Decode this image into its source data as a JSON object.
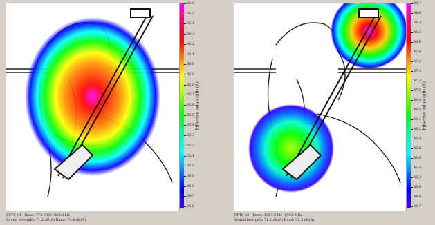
{
  "panels": [
    {
      "colorbar_label": "Effective value (dB) (A)",
      "ticks": [
        "66.6",
        "66.5",
        "66.4",
        "66.3",
        "66.2",
        "66.1",
        "66.0",
        "65.9",
        "65.8",
        "65.7",
        "65.6",
        "65.5",
        "65.4",
        "65.3",
        "65.2",
        "65.1",
        "65.0",
        "64.9",
        "64.8",
        "64.7",
        "64.6"
      ],
      "caption_line1": "FFTr_G1_  Band: 772.8 Hz- 888.6 Hz",
      "caption_line2": "Sound level(all): 71.2 dB(A)    Band: 70.4 dB(A)",
      "colors": {
        "top": "#ff00ff",
        "high": "#ff0000",
        "mid": "#ffff00",
        "low": "#00ff00",
        "lower": "#00ffff",
        "bottom": "#0000ff"
      }
    },
    {
      "colorbar_label": "Effective value (dB) (A)",
      "ticks": [
        "48.7",
        "48.6",
        "48.4",
        "48.2",
        "48.0",
        "47.8",
        "47.6",
        "47.4",
        "47.2",
        "47.0",
        "46.8",
        "46.6",
        "46.4",
        "46.2",
        "46.0",
        "45.8",
        "45.6",
        "45.4",
        "45.2",
        "45.0",
        "44.8",
        "44.7"
      ],
      "caption_line1": "FFTr_G1_  Band: 1557.2 Hz- 1593.8 Hz",
      "caption_line2": "Sound level(all): 71.2 dB(A)    Band: 52.3 dB(A)",
      "colors": {
        "top": "#ff00ff",
        "high": "#ff0000",
        "mid": "#ffff00",
        "low": "#00ff00",
        "lower": "#00ffff",
        "bottom": "#0000ff"
      }
    }
  ]
}
